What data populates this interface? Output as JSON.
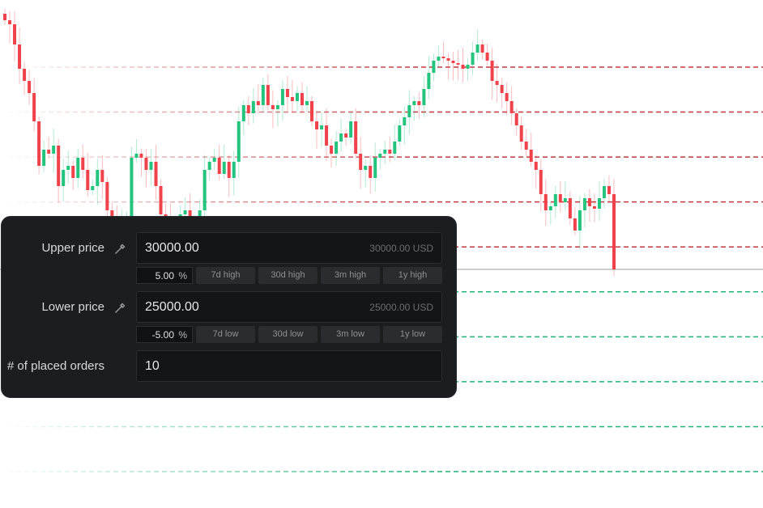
{
  "chart_data": {
    "type": "candlestick",
    "title": "",
    "xlabel": "",
    "ylabel": "",
    "ylim_usd": [
      24500,
      30830
    ],
    "closes_usd": [
      30580,
      30530,
      30280,
      29980,
      29830,
      29680,
      29330,
      28780,
      28980,
      28930,
      29030,
      28530,
      28730,
      28780,
      28630,
      28880,
      28730,
      28480,
      28530,
      28730,
      28580,
      28230,
      28130,
      27930,
      28030,
      28130,
      28880,
      28930,
      28880,
      28730,
      28830,
      28530,
      28180,
      28130,
      27830,
      27930,
      28180,
      28230,
      28030,
      27830,
      28230,
      28730,
      28830,
      28880,
      28680,
      28830,
      28630,
      28830,
      29330,
      29530,
      29430,
      29580,
      29530,
      29780,
      29530,
      29480,
      29530,
      29730,
      29630,
      29580,
      29680,
      29530,
      29580,
      29330,
      29230,
      29280,
      29030,
      28930,
      29080,
      29180,
      29130,
      29330,
      28930,
      28730,
      28780,
      28630,
      28880,
      28930,
      28980,
      28930,
      29080,
      29280,
      29380,
      29530,
      29580,
      29530,
      29730,
      29930,
      30080,
      30130,
      30110,
      30080,
      30050,
      30030,
      29980,
      30030,
      30180,
      30280,
      30180,
      30080,
      29830,
      29780,
      29680,
      29580,
      29430,
      29280,
      29080,
      28980,
      28830,
      28730,
      28430,
      28230,
      28280,
      28430,
      28330,
      28380,
      28130,
      27980,
      28230,
      28380,
      28280,
      28250,
      28380,
      28530,
      28430,
      27500
    ],
    "current_price_usd": 27500,
    "grid_upper_usd": 30000,
    "grid_lower_usd": 25000,
    "grid_lines": 10,
    "colors": {
      "up": "#22c47e",
      "down": "#f0424a",
      "grid_sell": "#c0393f",
      "grid_buy": "#1fb476",
      "current": "#bdbdbd"
    }
  },
  "form": {
    "upper": {
      "label": "Upper price",
      "value": "30000.00",
      "unit_text": "30000.00 USD",
      "pct": "5.00",
      "pct_sign": "%",
      "quick": [
        "7d high",
        "30d high",
        "3m high",
        "1y high"
      ]
    },
    "lower": {
      "label": "Lower price",
      "value": "25000.00",
      "unit_text": "25000.00 USD",
      "pct": "-5.00",
      "pct_sign": "%",
      "quick": [
        "7d low",
        "30d low",
        "3m low",
        "1y low"
      ]
    },
    "orders": {
      "label": "# of placed orders",
      "value": "10"
    },
    "icons": {
      "pick": "eyedropper-icon"
    }
  }
}
